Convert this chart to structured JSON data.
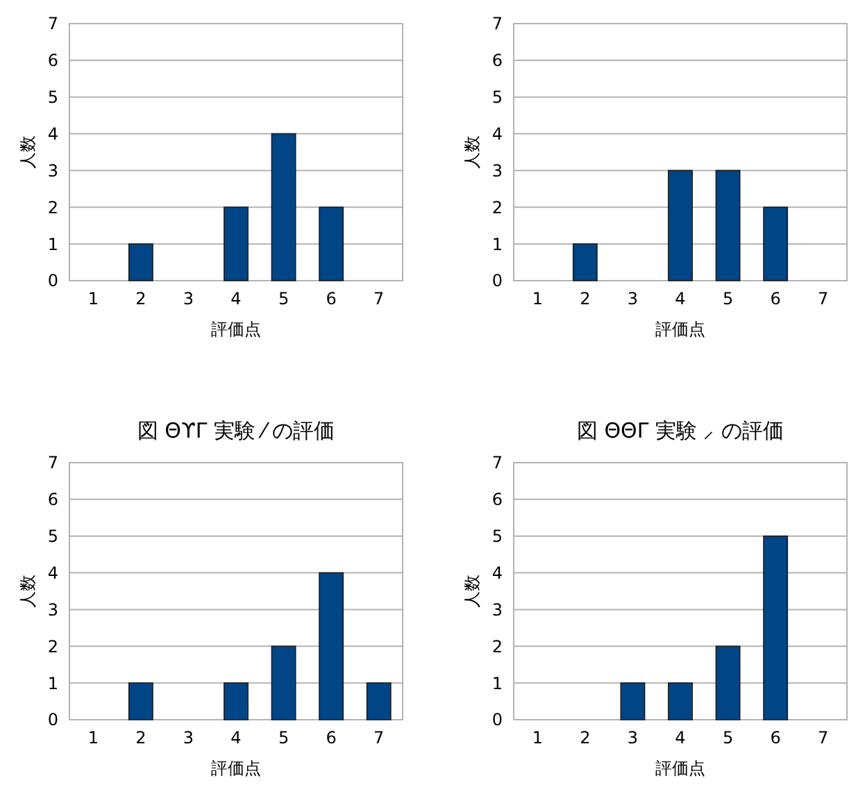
{
  "chart_data": [
    {
      "type": "bar",
      "categories": [
        "1",
        "2",
        "3",
        "4",
        "5",
        "6",
        "7"
      ],
      "values": [
        0,
        1,
        0,
        2,
        4,
        2,
        0
      ],
      "color": "#004586",
      "xlabel": "評価点",
      "ylabel": "人数",
      "ylim": [
        0,
        7
      ],
      "yticks": [
        0,
        1,
        2,
        3,
        4,
        5,
        6,
        7
      ],
      "grid": "y"
    },
    {
      "type": "bar",
      "categories": [
        "1",
        "2",
        "3",
        "4",
        "5",
        "6",
        "7"
      ],
      "values": [
        0,
        1,
        0,
        3,
        3,
        2,
        0
      ],
      "color": "#004586",
      "xlabel": "評価点",
      "ylabel": "人数",
      "ylim": [
        0,
        7
      ],
      "yticks": [
        0,
        1,
        2,
        3,
        4,
        5,
        6,
        7
      ],
      "grid": "y"
    },
    {
      "type": "bar",
      "title": "図 ΘϒΓ 実験 ⁄ の評価",
      "categories": [
        "1",
        "2",
        "3",
        "4",
        "5",
        "6",
        "7"
      ],
      "values": [
        0,
        1,
        0,
        1,
        2,
        4,
        1
      ],
      "color": "#004586",
      "xlabel": "評価点",
      "ylabel": "人数",
      "ylim": [
        0,
        7
      ],
      "yticks": [
        0,
        1,
        2,
        3,
        4,
        5,
        6,
        7
      ],
      "grid": "y"
    },
    {
      "type": "bar",
      "title": "図 ΘΘΓ 実験 ⸝ の評価",
      "categories": [
        "1",
        "2",
        "3",
        "4",
        "5",
        "6",
        "7"
      ],
      "values": [
        0,
        0,
        1,
        1,
        2,
        5,
        0
      ],
      "color": "#004586",
      "xlabel": "評価点",
      "ylabel": "人数",
      "ylim": [
        0,
        7
      ],
      "yticks": [
        0,
        1,
        2,
        3,
        4,
        5,
        6,
        7
      ],
      "grid": "y"
    }
  ]
}
